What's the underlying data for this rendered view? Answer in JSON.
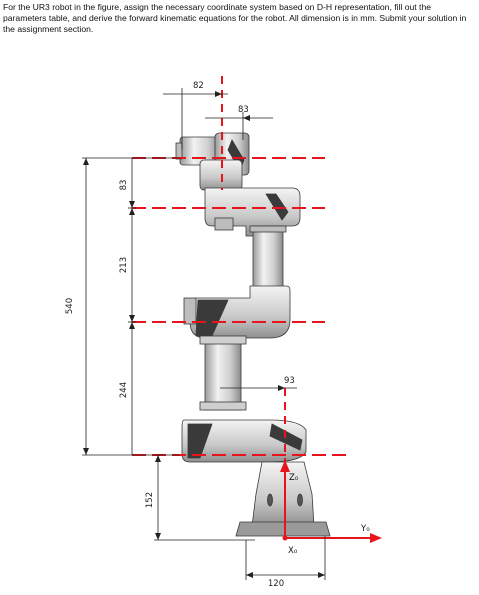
{
  "question": {
    "text": "For the UR3 robot in the figure, assign the necessary coordinate system based on D-H representation, fill out the parameters table, and derive the forward kinematic equations for the robot. All dimension is in mm. Submit your solution in the assignment section."
  },
  "figure": {
    "dimensions": {
      "top_offset": "82",
      "upper_offset": "83",
      "wrist_offset": "93",
      "base_width": "120",
      "total_height": "540",
      "seg_83": "83",
      "seg_213": "213",
      "seg_244": "244",
      "seg_152": "152"
    },
    "axes": {
      "z_label": "Z₀",
      "y_label": "Y₀",
      "x_label": "X₀"
    },
    "colors": {
      "axis_red": "#e8141c",
      "dimension_line": "#222222",
      "robot_body": "#d9d9d9",
      "robot_shadow": "#8c8c8c",
      "robot_dark": "#3a3a3a"
    }
  }
}
